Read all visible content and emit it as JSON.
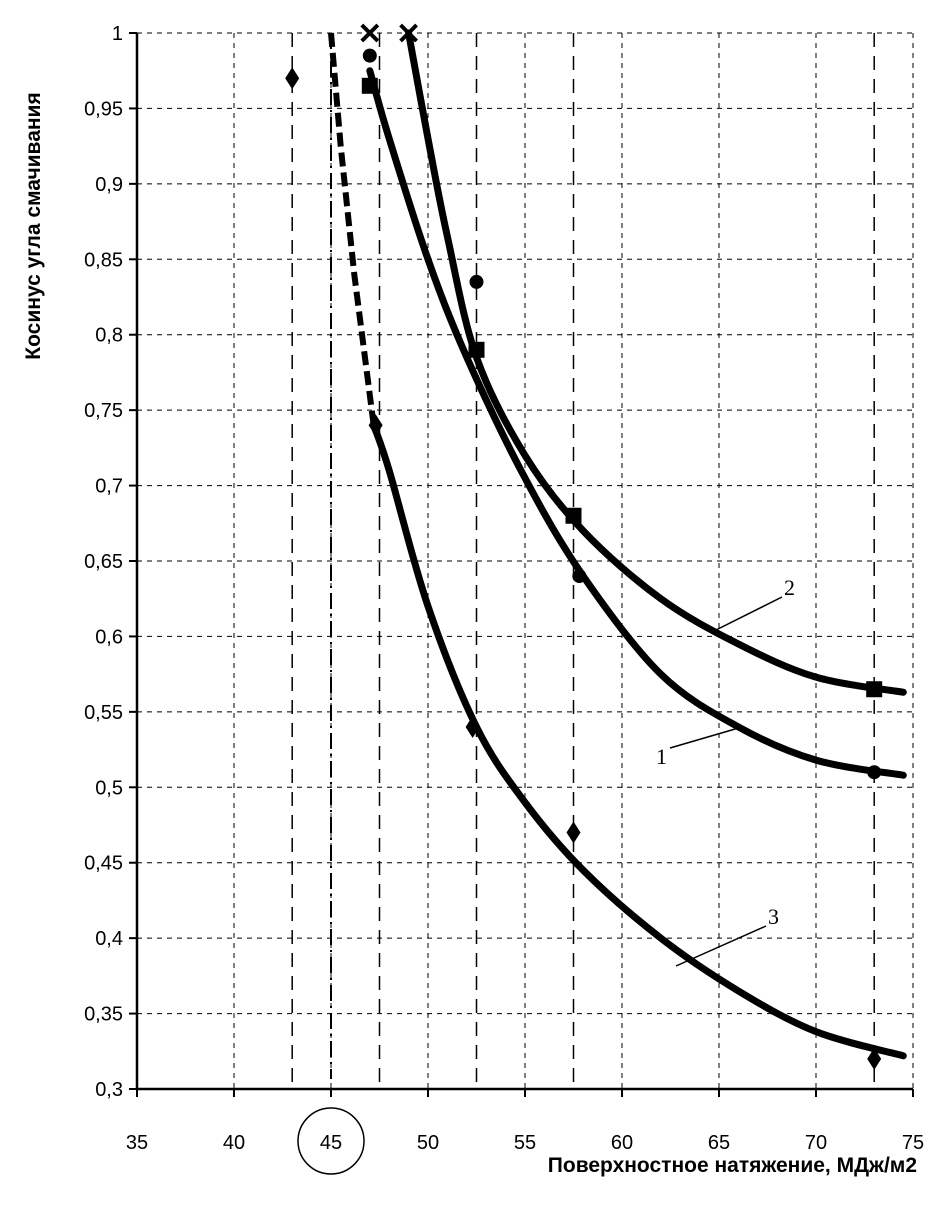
{
  "chart_data": {
    "type": "line",
    "xlabel": "Поверхностное натяжение, МДж/м2",
    "ylabel": "Косинус угла смачивания",
    "xlim": [
      35,
      75
    ],
    "ylim": [
      0.3,
      1
    ],
    "x_ticks": [
      "35",
      "40",
      "45",
      "50",
      "55",
      "60",
      "65",
      "70",
      "75"
    ],
    "y_ticks": [
      "0,3",
      "0,35",
      "0,4",
      "0,45",
      "0,5",
      "0,55",
      "0,6",
      "0,65",
      "0,7",
      "0,75",
      "0,8",
      "0,85",
      "0,9",
      "0,95",
      "1"
    ],
    "highlighted_x_tick": "45",
    "grid": true,
    "vertical_markers_x": [
      43,
      47.5,
      52.5,
      57.5,
      73
    ],
    "critical_line_x": 45,
    "series": [
      {
        "name": "1",
        "marker": "circle",
        "points": [
          [
            47,
            0.985
          ],
          [
            52.5,
            0.835
          ],
          [
            57.8,
            0.64
          ],
          [
            73,
            0.51
          ]
        ],
        "curve": [
          [
            47,
            0.975
          ],
          [
            48,
            0.93
          ],
          [
            50,
            0.85
          ],
          [
            52,
            0.785
          ],
          [
            55,
            0.705
          ],
          [
            58,
            0.64
          ],
          [
            62,
            0.575
          ],
          [
            66,
            0.54
          ],
          [
            70,
            0.518
          ],
          [
            74.5,
            0.508
          ]
        ]
      },
      {
        "name": "2",
        "marker": "square",
        "points": [
          [
            47,
            0.965
          ],
          [
            52.5,
            0.79
          ],
          [
            57.5,
            0.68
          ],
          [
            73,
            0.565
          ]
        ],
        "curve": [
          [
            49,
            1.0
          ],
          [
            50,
            0.93
          ],
          [
            51,
            0.865
          ],
          [
            52.5,
            0.785
          ],
          [
            55,
            0.72
          ],
          [
            58,
            0.67
          ],
          [
            62,
            0.625
          ],
          [
            66,
            0.595
          ],
          [
            70,
            0.573
          ],
          [
            74.5,
            0.563
          ]
        ]
      },
      {
        "name": "3",
        "marker": "diamond",
        "points": [
          [
            43,
            0.97
          ],
          [
            47.3,
            0.74
          ],
          [
            52.3,
            0.54
          ],
          [
            57.5,
            0.47
          ],
          [
            73,
            0.32
          ]
        ],
        "curve": [
          [
            47.2,
            0.74
          ],
          [
            48,
            0.71
          ],
          [
            50,
            0.62
          ],
          [
            52.5,
            0.54
          ],
          [
            55,
            0.49
          ],
          [
            58,
            0.445
          ],
          [
            62,
            0.4
          ],
          [
            66,
            0.365
          ],
          [
            70,
            0.338
          ],
          [
            74.5,
            0.322
          ]
        ]
      }
    ],
    "extrapolation_dashed": [
      [
        45,
        1.0
      ],
      [
        45.5,
        0.925
      ],
      [
        46.2,
        0.84
      ],
      [
        47.2,
        0.74
      ]
    ],
    "x_intercept_markers": [
      [
        47,
        1.0
      ],
      [
        49,
        1.0
      ]
    ]
  }
}
